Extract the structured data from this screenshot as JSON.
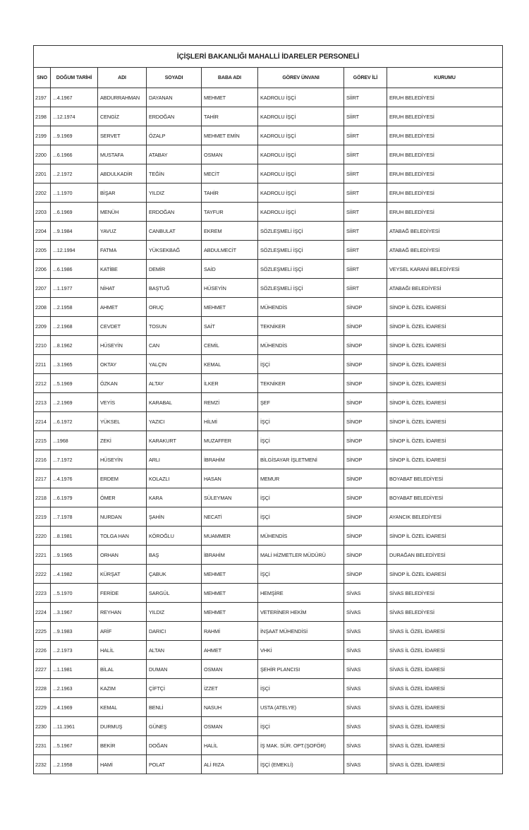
{
  "title": "İÇİŞLERİ BAKANLIĞI MAHALLİ İDARELER PERSONELİ",
  "columns": [
    "SNO",
    "DOĞUM TARİHİ",
    "ADI",
    "SOYADI",
    "BABA ADI",
    "GÖREV ÜNVANI",
    "GÖREV İLİ",
    "KURUMU"
  ],
  "rows": [
    [
      "2197",
      "...4.1967",
      "ABDURRAHMAN",
      "DAYANAN",
      "MEHMET",
      "KADROLU İŞÇİ",
      "SİİRT",
      "ERUH BELEDİYESİ"
    ],
    [
      "2198",
      "...12.1974",
      "CENGİZ",
      "ERDOĞAN",
      "TAHİR",
      "KADROLU İŞÇİ",
      "SİİRT",
      "ERUH BELEDİYESİ"
    ],
    [
      "2199",
      "...9.1969",
      "SERVET",
      "ÖZALP",
      "MEHMET EMİN",
      "KADROLU İŞÇİ",
      "SİİRT",
      "ERUH BELEDİYESİ"
    ],
    [
      "2200",
      "...6.1966",
      "MUSTAFA",
      "ATABAY",
      "OSMAN",
      "KADROLU İŞÇİ",
      "SİİRT",
      "ERUH BELEDİYESİ"
    ],
    [
      "2201",
      "...2.1972",
      "ABDULKADİR",
      "TEĞİN",
      "MECİT",
      "KADROLU İŞÇİ",
      "SİİRT",
      "ERUH BELEDİYESİ"
    ],
    [
      "2202",
      "...1.1970",
      "BİŞAR",
      "YILDIZ",
      "TAHİR",
      "KADROLU İŞÇİ",
      "SİİRT",
      "ERUH BELEDİYESİ"
    ],
    [
      "2203",
      "...6.1969",
      "MENÜH",
      "ERDOĞAN",
      "TAYFUR",
      "KADROLU İŞÇİ",
      "SİİRT",
      "ERUH BELEDİYESİ"
    ],
    [
      "2204",
      "...9.1984",
      "YAVUZ",
      "CANBULAT",
      "EKREM",
      "SÖZLEŞMELİ İŞÇİ",
      "SİİRT",
      "ATABAĞ BELEDİYESİ"
    ],
    [
      "2205",
      "...12.1994",
      "FATMA",
      "YÜKSEKBAĞ",
      "ABDULMECİT",
      "SÖZLEŞMELİ İŞÇİ",
      "SİİRT",
      "ATABAĞ BELEDİYESİ"
    ],
    [
      "2206",
      "...6.1986",
      "KATİBE",
      "DEMİR",
      "SAİD",
      "SÖZLEŞMELİ İŞÇİ",
      "SİİRT",
      "VEYSEL KARANİ BELEDİYESİ"
    ],
    [
      "2207",
      "...1.1977",
      "NİHAT",
      "BAŞTUĞ",
      "HÜSEYİN",
      "SÖZLEŞMELİ İŞÇİ",
      "SİİRT",
      "ATABAĞI BELEDİYESİ"
    ],
    [
      "2208",
      "...2.1958",
      "AHMET",
      "ORUÇ",
      "MEHMET",
      "MÜHENDİS",
      "SİNOP",
      "SİNOP İL ÖZEL İDARESİ"
    ],
    [
      "2209",
      "...2.1968",
      "CEVDET",
      "TOSUN",
      "SAİT",
      "TEKNİKER",
      "SİNOP",
      "SİNOP İL ÖZEL İDARESİ"
    ],
    [
      "2210",
      "...8.1962",
      "HÜSEYİN",
      "CAN",
      "CEMİL",
      "MÜHENDİS",
      "SİNOP",
      "SİNOP İL ÖZEL İDARESİ"
    ],
    [
      "2211",
      "...3.1965",
      "OKTAY",
      "YALÇIN",
      "KEMAL",
      "İŞÇİ",
      "SİNOP",
      "SİNOP İL ÖZEL İDARESİ"
    ],
    [
      "2212",
      "...5.1969",
      "ÖZKAN",
      "ALTAY",
      "İLKER",
      "TEKNİKER",
      "SİNOP",
      "SİNOP İL ÖZEL İDARESİ"
    ],
    [
      "2213",
      "...2.1969",
      "VEYİS",
      "KARABAL",
      "REMZİ",
      "ŞEF",
      "SİNOP",
      "SİNOP İL ÖZEL İDARESİ"
    ],
    [
      "2214",
      "...6.1972",
      "YÜKSEL",
      "YAZICI",
      "HİLMİ",
      "İŞÇİ",
      "SİNOP",
      "SİNOP İL ÖZEL İDARESİ"
    ],
    [
      "2215",
      "...1968",
      "ZEKİ",
      "KARAKURT",
      "MUZAFFER",
      "İŞÇİ",
      "SİNOP",
      "SİNOP İL ÖZEL İDARESİ"
    ],
    [
      "2216",
      "...7.1972",
      "HÜSEYİN",
      "ARLI",
      "İBRAHİM",
      "BİLGİSAYAR İŞLETMENİ",
      "SİNOP",
      "SİNOP İL ÖZEL İDARESİ"
    ],
    [
      "2217",
      "...4.1976",
      "ERDEM",
      "KOLAZLI",
      "HASAN",
      "MEMUR",
      "SİNOP",
      "BOYABAT BELEDİYESİ"
    ],
    [
      "2218",
      "...6.1979",
      "ÖMER",
      "KARA",
      "SÜLEYMAN",
      "İŞÇİ",
      "SİNOP",
      "BOYABAT BELEDİYESİ"
    ],
    [
      "2219",
      "...7.1978",
      "NURDAN",
      "ŞAHİN",
      "NECATİ",
      "İŞÇİ",
      "SİNOP",
      "AYANCIK BELEDİYESİ"
    ],
    [
      "2220",
      "...8.1981",
      "TOLGA HAN",
      "KÖROĞLU",
      "MUAMMER",
      "MÜHENDİS",
      "SİNOP",
      "SİNOP İL ÖZEL İDARESİ"
    ],
    [
      "2221",
      "...9.1965",
      "ORHAN",
      "BAŞ",
      "İBRAHİM",
      "MALİ HİZMETLER MÜDÜRÜ",
      "SİNOP",
      "DURAĞAN BELEDİYESİ"
    ],
    [
      "2222",
      "...4.1982",
      "KÜRŞAT",
      "ÇABUK",
      "MEHMET",
      "İŞÇİ",
      "SİNOP",
      "SİNOP İL ÖZEL İDARESİ"
    ],
    [
      "2223",
      "...5.1970",
      "FERİDE",
      "SARGÜL",
      "MEHMET",
      "HEMŞİRE",
      "SİVAS",
      "SİVAS BELEDİYESİ"
    ],
    [
      "2224",
      "...3.1967",
      "REYHAN",
      "YILDIZ",
      "MEHMET",
      "VETERİNER HEKİM",
      "SİVAS",
      "SİVAS BELEDİYESİ"
    ],
    [
      "2225",
      "...9.1983",
      "ARİF",
      "DARICI",
      "RAHMİ",
      "İNŞAAT MÜHENDİSİ",
      "SİVAS",
      "SİVAS İL ÖZEL İDARESİ"
    ],
    [
      "2226",
      "...2.1973",
      "HALİL",
      "ALTAN",
      "AHMET",
      "VHKİ",
      "SİVAS",
      "SİVAS İL ÖZEL İDARESİ"
    ],
    [
      "2227",
      "...1.1981",
      "BİLAL",
      "DUMAN",
      "OSMAN",
      "ŞEHİR PLANCISI",
      "SİVAS",
      "SİVAS İL ÖZEL İDARESİ"
    ],
    [
      "2228",
      "...2.1963",
      "KAZIM",
      "ÇİFTÇİ",
      "İZZET",
      "İŞÇİ",
      "SİVAS",
      "SİVAS İL ÖZEL İDARESİ"
    ],
    [
      "2229",
      "...4.1969",
      "KEMAL",
      "BENLİ",
      "NASUH",
      "USTA (ATELYE)",
      "SİVAS",
      "SİVAS İL ÖZEL İDARESİ"
    ],
    [
      "2230",
      "...11.1961",
      "DURMUŞ",
      "GÜNEŞ",
      "OSMAN",
      "İŞÇİ",
      "SİVAS",
      "SİVAS İL ÖZEL İDARESİ"
    ],
    [
      "2231",
      "...5.1967",
      "BEKİR",
      "DOĞAN",
      "HALİL",
      "İŞ MAK. SÜR. OPT.(ŞOFÖR)",
      "SİVAS",
      "SİVAS İL ÖZEL İDARESİ"
    ],
    [
      "2232",
      "...2.1958",
      "HAMİ",
      "POLAT",
      "ALİ RIZA",
      "İŞÇİ (EMEKLİ)",
      "SİVAS",
      "SİVAS İL ÖZEL İDARESİ"
    ]
  ]
}
